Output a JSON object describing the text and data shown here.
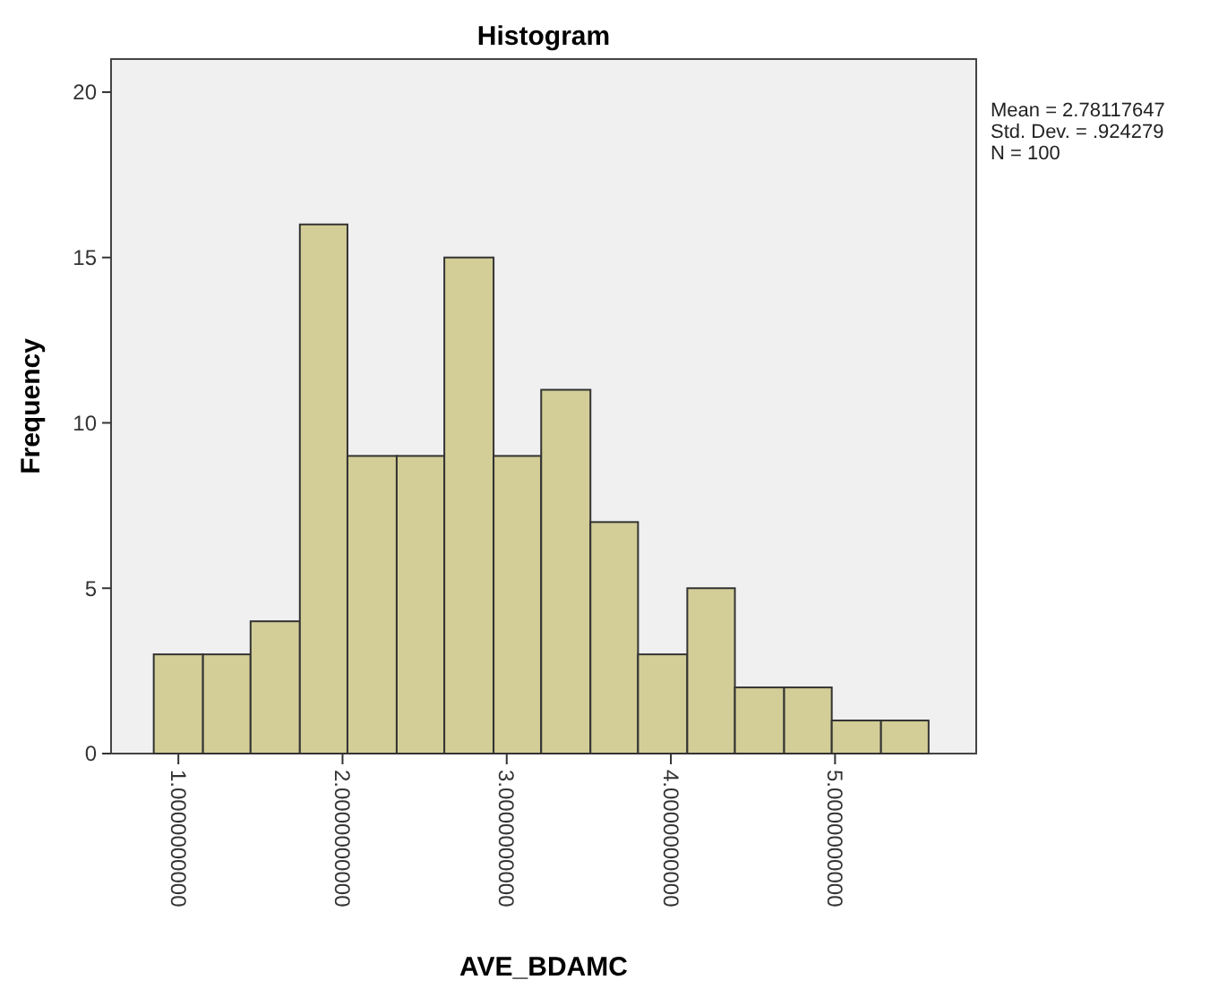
{
  "chart_data": {
    "type": "histogram",
    "title": "Histogram",
    "xlabel": "AVE_BDAMC",
    "ylabel": "Frequency",
    "bins": [
      0.85,
      1.15,
      1.44,
      1.74,
      2.03,
      2.33,
      2.62,
      2.92,
      3.21,
      3.51,
      3.8,
      4.1,
      4.39,
      4.69,
      4.98,
      5.28,
      5.57
    ],
    "values": [
      3,
      3,
      4,
      16,
      9,
      9,
      15,
      9,
      11,
      7,
      3,
      5,
      2,
      2,
      1,
      1
    ],
    "color": "#d3ce97",
    "xlim": [
      0.59,
      5.86
    ],
    "xticks": [
      {
        "value": 1,
        "label": "1.0000000000"
      },
      {
        "value": 2,
        "label": "2.0000000000"
      },
      {
        "value": 3,
        "label": "3.0000000000"
      },
      {
        "value": 4,
        "label": "4.0000000000"
      },
      {
        "value": 5,
        "label": "5.0000000000"
      }
    ],
    "ylim": [
      0,
      21
    ],
    "yticks": [
      0,
      5,
      10,
      15,
      20
    ],
    "annotations": [
      "Mean = 2.78117647",
      "Std. Dev. = .924279",
      "N = 100"
    ]
  }
}
